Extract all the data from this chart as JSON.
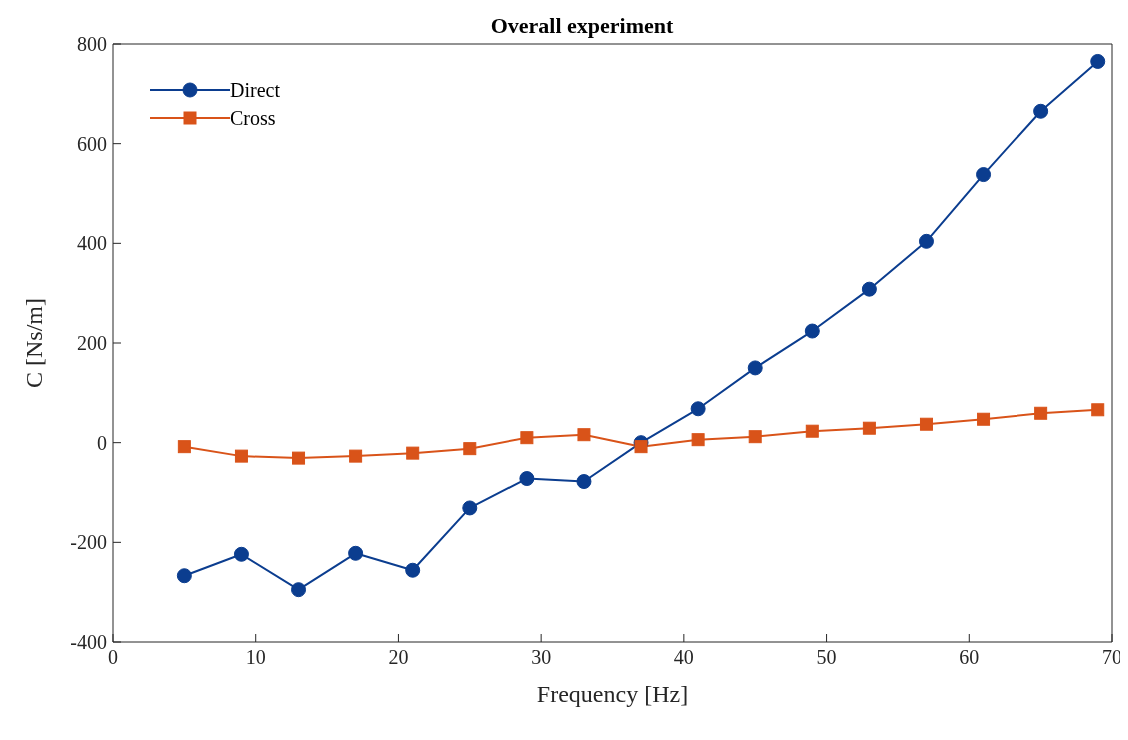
{
  "chart_data": {
    "type": "line",
    "title": "Overall experiment",
    "xlabel": "Frequency [Hz]",
    "ylabel": "C [Ns/m]",
    "x": [
      5,
      9,
      13,
      17,
      21,
      25,
      29,
      33,
      37,
      41,
      45,
      49,
      53,
      57,
      61,
      65,
      69
    ],
    "series": [
      {
        "name": "Direct",
        "color": "#0b3d8f",
        "marker": "circle",
        "values": [
          -267,
          -224,
          -295,
          -222,
          -256,
          -131,
          -72,
          -78,
          0,
          68,
          150,
          224,
          308,
          404,
          538,
          665,
          765
        ]
      },
      {
        "name": "Cross",
        "color": "#d95319",
        "marker": "square",
        "values": [
          -8,
          -27,
          -31,
          -27,
          -21,
          -12,
          10,
          16,
          -8,
          6,
          12,
          23,
          29,
          37,
          47,
          59,
          66
        ]
      }
    ],
    "xlim": [
      0,
      70
    ],
    "xticks": [
      0,
      10,
      20,
      30,
      40,
      50,
      60,
      70
    ],
    "ylim": [
      -400,
      800
    ],
    "yticks": [
      -400,
      -200,
      0,
      200,
      400,
      600,
      800
    ],
    "grid": false,
    "legend": "top left",
    "line_style": "solid"
  }
}
